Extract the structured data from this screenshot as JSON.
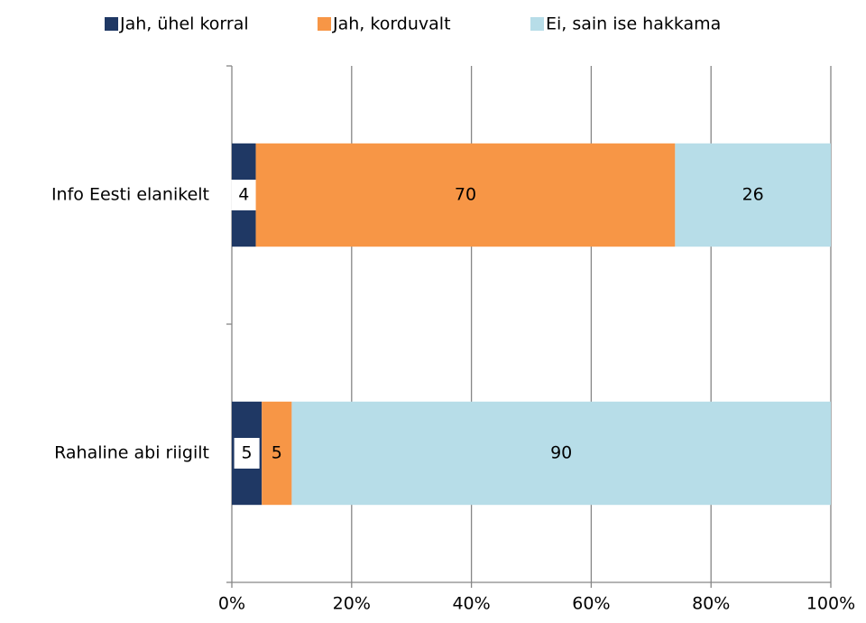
{
  "chart_data": {
    "type": "stacked-bar-horizontal",
    "categories": [
      "Info Eesti elanikelt",
      "Rahaline abi riigilt"
    ],
    "series": [
      {
        "name": "Jah, ühel korral",
        "color": "#1f3864",
        "values": [
          4,
          5
        ]
      },
      {
        "name": "Jah, korduvalt",
        "color": "#f79646",
        "values": [
          70,
          5
        ]
      },
      {
        "name": "Ei, sain ise hakkama",
        "color": "#b7dde8",
        "values": [
          26,
          90
        ]
      }
    ],
    "xlim": [
      0,
      100
    ],
    "xticks": [
      {
        "value": 0,
        "label": "0%"
      },
      {
        "value": 20,
        "label": "20%"
      },
      {
        "value": 40,
        "label": "40%"
      },
      {
        "value": 60,
        "label": "60%"
      },
      {
        "value": 80,
        "label": "80%"
      },
      {
        "value": 100,
        "label": "100%"
      }
    ],
    "grid": true,
    "legend": "top"
  }
}
